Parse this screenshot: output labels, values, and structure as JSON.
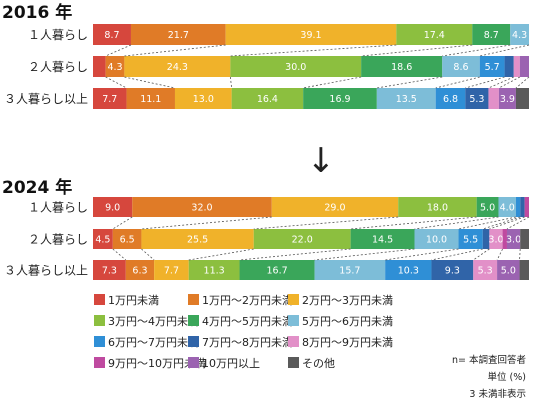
{
  "chart_data": [
    {
      "type": "bar",
      "stacked": true,
      "orientation": "horizontal",
      "title": "2016 年",
      "categories": [
        "１人暮らし",
        "２人暮らし",
        "３人暮らし以上"
      ],
      "segments": [
        [
          {
            "c": 0,
            "v": 8.7,
            "label": "8.7"
          },
          {
            "c": 1,
            "v": 21.7,
            "label": "21.7"
          },
          {
            "c": 2,
            "v": 39.1,
            "label": "39.1"
          },
          {
            "c": 3,
            "v": 17.4,
            "label": "17.4"
          },
          {
            "c": 4,
            "v": 8.7,
            "label": "8.7"
          },
          {
            "c": 5,
            "v": 4.3,
            "label": "4.3"
          }
        ],
        [
          {
            "c": 0,
            "v": 2.9,
            "label": ""
          },
          {
            "c": 1,
            "v": 4.3,
            "label": "4.3"
          },
          {
            "c": 2,
            "v": 24.3,
            "label": "24.3"
          },
          {
            "c": 3,
            "v": 30.0,
            "label": "30.0"
          },
          {
            "c": 4,
            "v": 18.6,
            "label": "18.6"
          },
          {
            "c": 5,
            "v": 8.6,
            "label": "8.6"
          },
          {
            "c": 6,
            "v": 5.7,
            "label": "5.7"
          },
          {
            "c": 7,
            "v": 2.1,
            "label": ""
          },
          {
            "c": 8,
            "v": 1.4,
            "label": ""
          },
          {
            "c": 10,
            "v": 2.1,
            "label": ""
          }
        ],
        [
          {
            "c": 0,
            "v": 7.7,
            "label": "7.7"
          },
          {
            "c": 1,
            "v": 11.1,
            "label": "11.1"
          },
          {
            "c": 2,
            "v": 13.0,
            "label": "13.0"
          },
          {
            "c": 3,
            "v": 16.4,
            "label": "16.4"
          },
          {
            "c": 4,
            "v": 16.9,
            "label": "16.9"
          },
          {
            "c": 5,
            "v": 13.5,
            "label": "13.5"
          },
          {
            "c": 6,
            "v": 6.8,
            "label": "6.8"
          },
          {
            "c": 7,
            "v": 5.3,
            "label": "5.3"
          },
          {
            "c": 8,
            "v": 2.4,
            "label": ""
          },
          {
            "c": 10,
            "v": 3.9,
            "label": "3.9"
          },
          {
            "c": 11,
            "v": 3.0,
            "label": ""
          }
        ]
      ]
    },
    {
      "type": "bar",
      "stacked": true,
      "orientation": "horizontal",
      "title": "2024 年",
      "categories": [
        "１人暮らし",
        "２人暮らし",
        "３人暮らし以上"
      ],
      "segments": [
        [
          {
            "c": 0,
            "v": 9.0,
            "label": "9.0"
          },
          {
            "c": 1,
            "v": 32.0,
            "label": "32.0"
          },
          {
            "c": 2,
            "v": 29.0,
            "label": "29.0"
          },
          {
            "c": 3,
            "v": 18.0,
            "label": "18.0"
          },
          {
            "c": 4,
            "v": 5.0,
            "label": "5.0"
          },
          {
            "c": 5,
            "v": 4.0,
            "label": "4.0"
          },
          {
            "c": 6,
            "v": 1.0,
            "label": ""
          },
          {
            "c": 7,
            "v": 1.0,
            "label": ""
          },
          {
            "c": 9,
            "v": 1.0,
            "label": ""
          }
        ],
        [
          {
            "c": 0,
            "v": 4.5,
            "label": "4.5"
          },
          {
            "c": 1,
            "v": 6.5,
            "label": "6.5"
          },
          {
            "c": 2,
            "v": 25.5,
            "label": "25.5"
          },
          {
            "c": 3,
            "v": 22.0,
            "label": "22.0"
          },
          {
            "c": 4,
            "v": 14.5,
            "label": "14.5"
          },
          {
            "c": 5,
            "v": 10.0,
            "label": "10.0"
          },
          {
            "c": 6,
            "v": 5.5,
            "label": "5.5"
          },
          {
            "c": 7,
            "v": 1.5,
            "label": ""
          },
          {
            "c": 8,
            "v": 3.0,
            "label": "3.0"
          },
          {
            "c": 9,
            "v": 1.0,
            "label": ""
          },
          {
            "c": 10,
            "v": 3.0,
            "label": "3.0"
          },
          {
            "c": 11,
            "v": 2.0,
            "label": ""
          }
        ],
        [
          {
            "c": 0,
            "v": 7.3,
            "label": "7.3"
          },
          {
            "c": 1,
            "v": 6.3,
            "label": "6.3"
          },
          {
            "c": 2,
            "v": 7.7,
            "label": "7.7"
          },
          {
            "c": 3,
            "v": 11.3,
            "label": "11.3"
          },
          {
            "c": 4,
            "v": 16.7,
            "label": "16.7"
          },
          {
            "c": 5,
            "v": 15.7,
            "label": "15.7"
          },
          {
            "c": 6,
            "v": 10.3,
            "label": "10.3"
          },
          {
            "c": 7,
            "v": 9.3,
            "label": "9.3"
          },
          {
            "c": 8,
            "v": 5.3,
            "label": "5.3"
          },
          {
            "c": 10,
            "v": 5.0,
            "label": "5.0"
          },
          {
            "c": 11,
            "v": 2.1,
            "label": ""
          }
        ]
      ]
    }
  ],
  "arrow": "↓",
  "legend": [
    {
      "label": "1万円未満",
      "color": "#d6473d"
    },
    {
      "label": "1万円〜2万円未満",
      "color": "#e07b27"
    },
    {
      "label": "2万円〜3万円未満",
      "color": "#f0b22a"
    },
    {
      "label": "3万円〜4万円未満",
      "color": "#8cbf3f"
    },
    {
      "label": "4万円〜5万円未満",
      "color": "#3aa65a"
    },
    {
      "label": "5万円〜6万円未満",
      "color": "#7dbdd8"
    },
    {
      "label": "6万円〜7万円未満",
      "color": "#2f8fd6"
    },
    {
      "label": "7万円〜8万円未満",
      "color": "#3064a8"
    },
    {
      "label": "8万円〜9万円未満",
      "color": "#e290c8"
    },
    {
      "label": "9万円〜10万円未満",
      "color": "#bf4aa0"
    },
    {
      "label": "10万円以上",
      "color": "#9b63b1"
    },
    {
      "label": "その他",
      "color": "#5a5a5a"
    }
  ],
  "notes": [
    "n= 本調査回答者",
    "単位 (%)",
    "3 未満非表示"
  ]
}
